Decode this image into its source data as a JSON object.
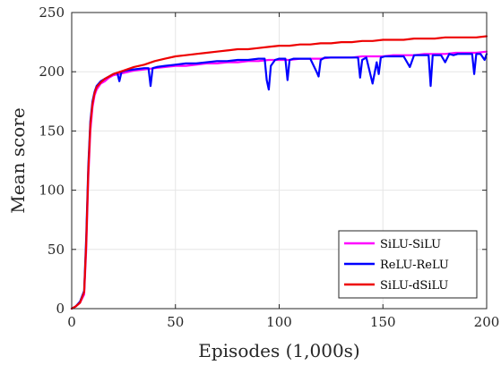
{
  "chart_data": {
    "type": "line",
    "title": "",
    "xlabel": "Episodes (1,000s)",
    "ylabel": "Mean score",
    "xlim": [
      0,
      200
    ],
    "ylim": [
      0,
      250
    ],
    "xticks": [
      0,
      50,
      100,
      150,
      200
    ],
    "yticks": [
      0,
      50,
      100,
      150,
      200,
      250
    ],
    "grid": true,
    "legend_position": "bottom-right",
    "colors": {
      "SiLU-SiLU": "#ff00ff",
      "ReLU-ReLU": "#0000ff",
      "SiLU-dSiLU": "#ee0000",
      "axis": "#262626",
      "grid": "#e6e6e6"
    },
    "series": [
      {
        "name": "SiLU-SiLU",
        "x": [
          0,
          2,
          4,
          6,
          7,
          8,
          9,
          10,
          11,
          12,
          14,
          16,
          18,
          20,
          25,
          30,
          35,
          40,
          45,
          50,
          55,
          60,
          65,
          70,
          75,
          80,
          85,
          90,
          95,
          100,
          105,
          110,
          115,
          120,
          125,
          130,
          135,
          140,
          145,
          150,
          155,
          160,
          165,
          170,
          175,
          180,
          185,
          190,
          195,
          200
        ],
        "y": [
          0,
          2,
          5,
          12,
          50,
          110,
          150,
          170,
          180,
          185,
          190,
          192,
          195,
          197,
          199,
          201,
          202,
          203,
          204,
          205,
          205,
          206,
          207,
          207,
          208,
          208,
          209,
          209,
          210,
          210,
          210,
          211,
          211,
          211,
          212,
          212,
          212,
          213,
          213,
          213,
          214,
          214,
          214,
          215,
          215,
          215,
          216,
          216,
          216,
          217
        ]
      },
      {
        "name": "ReLU-ReLU",
        "x": [
          0,
          2,
          4,
          6,
          7,
          8,
          9,
          10,
          11,
          12,
          14,
          16,
          18,
          20,
          22,
          23,
          24,
          26,
          30,
          35,
          37,
          38,
          39,
          41,
          45,
          50,
          55,
          60,
          65,
          70,
          75,
          80,
          85,
          90,
          93,
          94,
          95,
          96,
          98,
          100,
          103,
          104,
          105,
          107,
          110,
          115,
          118,
          119,
          120,
          122,
          125,
          130,
          135,
          138,
          139,
          140,
          142,
          145,
          147,
          148,
          149,
          151,
          153,
          155,
          158,
          160,
          163,
          165,
          168,
          170,
          172,
          173,
          174,
          176,
          178,
          180,
          182,
          184,
          186,
          188,
          190,
          193,
          194,
          195,
          197,
          199,
          200
        ],
        "y": [
          0,
          2,
          6,
          15,
          60,
          120,
          158,
          175,
          183,
          188,
          192,
          194,
          196,
          198,
          199,
          192,
          200,
          201,
          202,
          203,
          203,
          188,
          203,
          204,
          205,
          206,
          207,
          207,
          208,
          209,
          209,
          210,
          210,
          211,
          211,
          193,
          185,
          205,
          210,
          211,
          211,
          193,
          210,
          211,
          211,
          211,
          200,
          196,
          210,
          212,
          212,
          212,
          212,
          212,
          195,
          210,
          212,
          190,
          208,
          198,
          212,
          213,
          213,
          213,
          213,
          213,
          204,
          214,
          214,
          214,
          214,
          188,
          214,
          214,
          214,
          208,
          215,
          214,
          215,
          215,
          215,
          215,
          198,
          215,
          215,
          210,
          215
        ]
      },
      {
        "name": "SiLU-dSiLU",
        "x": [
          0,
          2,
          4,
          6,
          7,
          8,
          9,
          10,
          11,
          12,
          14,
          16,
          18,
          20,
          25,
          30,
          35,
          40,
          45,
          50,
          55,
          60,
          65,
          70,
          75,
          80,
          85,
          90,
          95,
          100,
          105,
          110,
          115,
          120,
          125,
          130,
          135,
          140,
          145,
          150,
          155,
          160,
          165,
          170,
          175,
          180,
          185,
          190,
          195,
          200
        ],
        "y": [
          0,
          2,
          5,
          14,
          55,
          115,
          155,
          173,
          182,
          187,
          191,
          194,
          196,
          198,
          201,
          204,
          206,
          209,
          211,
          213,
          214,
          215,
          216,
          217,
          218,
          219,
          219,
          220,
          221,
          222,
          222,
          223,
          223,
          224,
          224,
          225,
          225,
          226,
          226,
          227,
          227,
          227,
          228,
          228,
          228,
          229,
          229,
          229,
          229,
          230
        ]
      }
    ]
  }
}
